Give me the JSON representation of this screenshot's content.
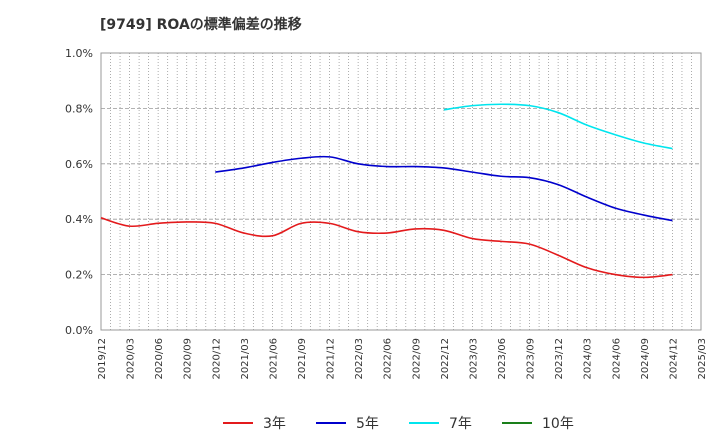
{
  "chart_data": {
    "type": "line",
    "title": "[9749]  ROAの標準偏差の推移",
    "xlabel": "",
    "ylabel": "",
    "ylim": [
      0,
      1.0
    ],
    "yticks": [
      "0.0%",
      "0.2%",
      "0.4%",
      "0.6%",
      "0.8%",
      "1.0%"
    ],
    "categories": [
      "2019/12",
      "2020/03",
      "2020/06",
      "2020/09",
      "2020/12",
      "2021/03",
      "2021/06",
      "2021/09",
      "2021/12",
      "2022/03",
      "2022/06",
      "2022/09",
      "2022/12",
      "2023/03",
      "2023/06",
      "2023/09",
      "2023/12",
      "2024/03",
      "2024/06",
      "2024/09",
      "2024/12",
      "2025/03"
    ],
    "grid": true,
    "legend_position": "bottom",
    "series": [
      {
        "name": "3年",
        "color": "#e31a1c",
        "values": [
          0.405,
          0.375,
          0.385,
          0.39,
          0.385,
          0.35,
          0.34,
          0.385,
          0.385,
          0.355,
          0.35,
          0.365,
          0.36,
          0.33,
          0.32,
          0.31,
          0.27,
          0.225,
          0.2,
          0.19,
          0.2,
          null
        ]
      },
      {
        "name": "5年",
        "color": "#0000cc",
        "values": [
          null,
          null,
          null,
          null,
          0.57,
          0.585,
          0.605,
          0.62,
          0.625,
          0.6,
          0.59,
          0.59,
          0.585,
          0.57,
          0.555,
          0.55,
          0.525,
          0.48,
          0.44,
          0.415,
          0.395,
          null
        ]
      },
      {
        "name": "7年",
        "color": "#00e5ee",
        "values": [
          null,
          null,
          null,
          null,
          null,
          null,
          null,
          null,
          null,
          null,
          null,
          null,
          0.795,
          0.81,
          0.815,
          0.81,
          0.785,
          0.74,
          0.705,
          0.675,
          0.655,
          null
        ]
      },
      {
        "name": "10年",
        "color": "#1a7f1a",
        "values": [
          null,
          null,
          null,
          null,
          null,
          null,
          null,
          null,
          null,
          null,
          null,
          null,
          null,
          null,
          null,
          null,
          null,
          null,
          null,
          null,
          null,
          null
        ]
      }
    ]
  }
}
